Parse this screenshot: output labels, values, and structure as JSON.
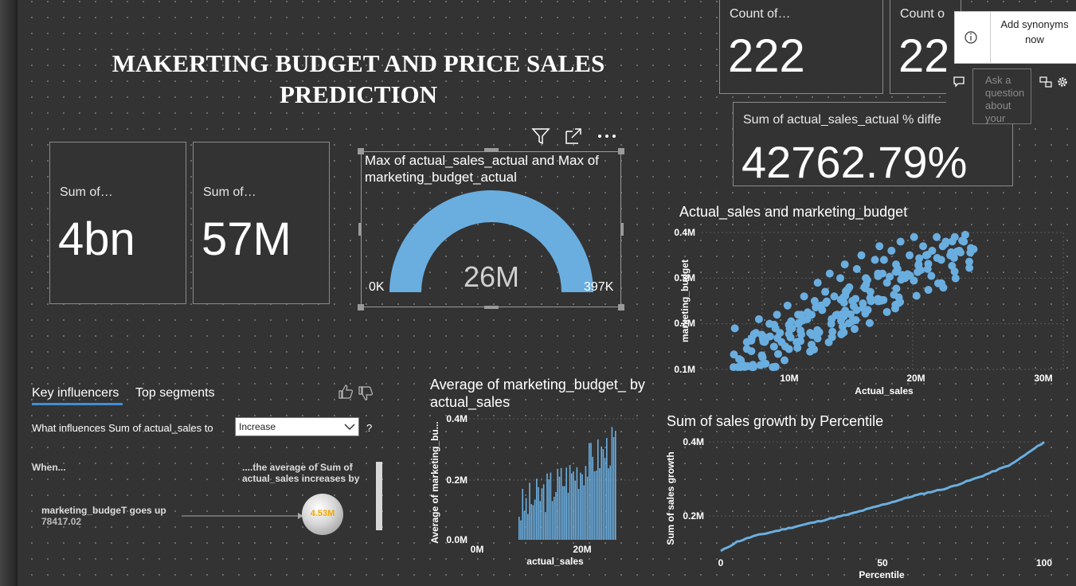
{
  "report_title": "MAKERTING BUDGET AND PRICE SALES PREDICTION",
  "cards": [
    {
      "label": "Sum of…",
      "value": "4bn"
    },
    {
      "label": "Sum of…",
      "value": "57M"
    },
    {
      "label": "Count of…",
      "value": "222"
    },
    {
      "label": "Count o",
      "value": "22"
    },
    {
      "label": "Sum of actual_sales_actual % diffe",
      "value": "42762.79%"
    }
  ],
  "qa_popup": {
    "add_synonyms": "Add synonyms now",
    "ask_placeholder": "Ask a question about your"
  },
  "visual_header": {
    "filter_icon": "filter-icon",
    "focus_icon": "focus-mode-icon",
    "more_icon": "more-options-icon"
  },
  "gauge": {
    "title": "Max of actual_sales_actual and Max of marketing_budget_actual",
    "value_label": "26M",
    "min_label": "0K",
    "max_label": "397K",
    "color": "#6aaee0"
  },
  "scatter": {
    "title": "Actual_sales and marketing_budget",
    "xlabel": "Actual_sales",
    "ylabel": "marketing_budget",
    "xticks": [
      "10M",
      "20M",
      "30M"
    ],
    "yticks": [
      "0.4M",
      "0.3M",
      "0.2M",
      "0.1M"
    ]
  },
  "bar": {
    "title": "Average of marketing_budget_ by actual_sales",
    "xlabel": "actual_sales",
    "ylabel": "Average of marketing_bu...",
    "xticks": [
      "0M",
      "20M"
    ],
    "yticks": [
      "0.4M",
      "0.2M",
      "0.0M"
    ]
  },
  "line": {
    "title": "Sum of sales growth by Percentile",
    "xlabel": "Percentile",
    "ylabel": "Sum of sales growth",
    "xticks": [
      "0",
      "50",
      "100"
    ],
    "yticks": [
      "0.4M",
      "0.2M"
    ]
  },
  "key_influencers": {
    "tab_active": "Key influencers",
    "tab_other": "Top segments",
    "question": "What influences Sum of actual_sales to",
    "selected": "Increase",
    "help": "?",
    "when": "When...",
    "avg_text": "....the average of Sum of actual_sales increases by",
    "influencer_name": "marketing_budgeT goes up",
    "influencer_value": "78417.02",
    "bubble_value": "4.53M"
  },
  "chart_data": [
    {
      "type": "scatter",
      "title": "Actual_sales and marketing_budget",
      "xlabel": "Actual_sales",
      "ylabel": "marketing_budget",
      "xlim": [
        6000000,
        30000000
      ],
      "ylim": [
        100000,
        400000
      ],
      "note_points": "approximate representative cloud",
      "points": [
        [
          8.2,
          0.19
        ],
        [
          8.6,
          0.12
        ],
        [
          9.0,
          0.16
        ],
        [
          9.3,
          0.14
        ],
        [
          9.6,
          0.18
        ],
        [
          9.8,
          0.21
        ],
        [
          10.0,
          0.13
        ],
        [
          10.2,
          0.17
        ],
        [
          10.5,
          0.2
        ],
        [
          10.8,
          0.15
        ],
        [
          11.0,
          0.22
        ],
        [
          11.2,
          0.18
        ],
        [
          11.5,
          0.12
        ],
        [
          11.7,
          0.24
        ],
        [
          12.0,
          0.19
        ],
        [
          12.3,
          0.16
        ],
        [
          12.6,
          0.22
        ],
        [
          12.8,
          0.26
        ],
        [
          13.0,
          0.21
        ],
        [
          13.2,
          0.18
        ],
        [
          13.5,
          0.25
        ],
        [
          13.7,
          0.29
        ],
        [
          14.0,
          0.23
        ],
        [
          14.2,
          0.27
        ],
        [
          14.5,
          0.31
        ],
        [
          14.8,
          0.26
        ],
        [
          15.0,
          0.22
        ],
        [
          15.2,
          0.3
        ],
        [
          15.5,
          0.33
        ],
        [
          15.8,
          0.28
        ],
        [
          16.0,
          0.25
        ],
        [
          16.3,
          0.32
        ],
        [
          16.6,
          0.35
        ],
        [
          16.9,
          0.3
        ],
        [
          17.2,
          0.27
        ],
        [
          17.5,
          0.34
        ],
        [
          17.8,
          0.37
        ],
        [
          18.0,
          0.31
        ],
        [
          18.3,
          0.29
        ],
        [
          18.6,
          0.36
        ],
        [
          18.9,
          0.33
        ],
        [
          19.2,
          0.38
        ],
        [
          19.5,
          0.3
        ],
        [
          19.8,
          0.35
        ],
        [
          20.1,
          0.39
        ],
        [
          20.4,
          0.33
        ],
        [
          20.7,
          0.37
        ],
        [
          21.0,
          0.32
        ],
        [
          21.3,
          0.36
        ],
        [
          21.6,
          0.39
        ],
        [
          21.9,
          0.34
        ],
        [
          22.2,
          0.38
        ],
        [
          22.5,
          0.35
        ],
        [
          22.8,
          0.39
        ],
        [
          23.1,
          0.36
        ],
        [
          23.4,
          0.38
        ],
        [
          12.4,
          0.2
        ],
        [
          13.9,
          0.24
        ],
        [
          16.8,
          0.28
        ],
        [
          17.7,
          0.31
        ],
        [
          9.4,
          0.11
        ],
        [
          10.9,
          0.19
        ],
        [
          14.6,
          0.2
        ],
        [
          19.0,
          0.32
        ],
        [
          20.9,
          0.35
        ],
        [
          15.6,
          0.27
        ],
        [
          11.9,
          0.17
        ],
        [
          18.1,
          0.34
        ],
        [
          22.0,
          0.37
        ],
        [
          13.3,
          0.22
        ]
      ]
    },
    {
      "type": "bar",
      "title": "Average of marketing_budget_ by actual_sales",
      "xlabel": "actual_sales",
      "ylabel": "Average of marketing_bu...",
      "ylim": [
        0,
        400000
      ],
      "note": "dense histogram-like bars between ~10M and ~25M actual_sales"
    },
    {
      "type": "line",
      "title": "Sum of sales growth by Percentile",
      "xlabel": "Percentile",
      "ylabel": "Sum of sales growth",
      "xlim": [
        0,
        100
      ],
      "x": [
        0,
        5,
        10,
        20,
        30,
        40,
        50,
        60,
        70,
        80,
        90,
        100
      ],
      "y": [
        105000,
        130000,
        145000,
        165000,
        185000,
        205000,
        230000,
        255000,
        275000,
        305000,
        340000,
        400000
      ]
    }
  ]
}
